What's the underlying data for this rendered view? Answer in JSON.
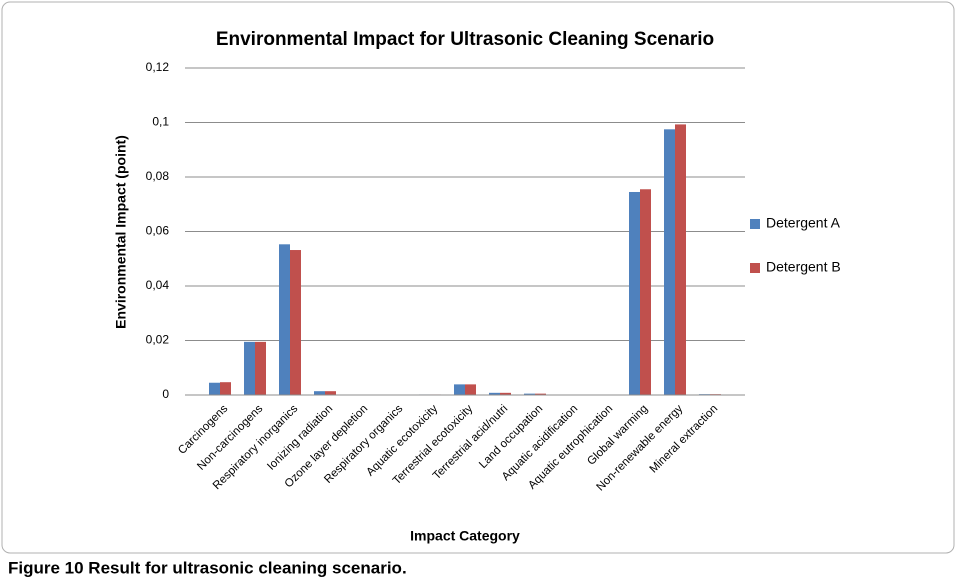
{
  "chart_data": {
    "type": "bar",
    "title": "Environmental Impact for Ultrasonic Cleaning Scenario",
    "ylabel": "Environmental Impact (point)",
    "xlabel": "Impact Category",
    "caption": "Figure 10 Result for ultrasonic cleaning scenario.",
    "categories": [
      "Carcinogens",
      "Non-carcinogens",
      "Respiratory inorganics",
      "Ionizing radiation",
      "Ozone layer depletion",
      "Respiratory organics",
      "Aquatic ecotoxicity",
      "Terrestrial ecotoxicity",
      "Terrestrial acid/nutri",
      "Land occupation",
      "Aquatic acidification",
      "Aquatic eutrophication",
      "Global warming",
      "Non-renewable energy",
      "Mineral extraction"
    ],
    "series": [
      {
        "name": "Detergent A",
        "color": "#4f81bd",
        "values": [
          0.0045,
          0.0195,
          0.0553,
          0.0014,
          5e-05,
          0.0001,
          0.0002,
          0.0039,
          0.0008,
          0.0005,
          0.0001,
          0,
          0.0745,
          0.0975,
          0.0003
        ]
      },
      {
        "name": "Detergent B",
        "color": "#c0504d",
        "values": [
          0.0047,
          0.0195,
          0.0532,
          0.0014,
          5e-05,
          0.0001,
          0.0002,
          0.0039,
          0.0008,
          0.0005,
          0.0001,
          0,
          0.0755,
          0.0993,
          0.0003
        ]
      }
    ],
    "ylim": [
      0,
      0.12
    ],
    "yticks": [
      0,
      {
        "value": 0.02,
        "label": "0,02"
      },
      {
        "value": 0.04,
        "label": "0,04"
      },
      {
        "value": 0.06,
        "label": "0,06"
      },
      {
        "value": 0.08,
        "label": "0,08"
      },
      {
        "value": 0.1,
        "label": "0,1"
      },
      {
        "value": 0.12,
        "label": "0,12"
      }
    ],
    "grid": true,
    "legend": "right"
  }
}
